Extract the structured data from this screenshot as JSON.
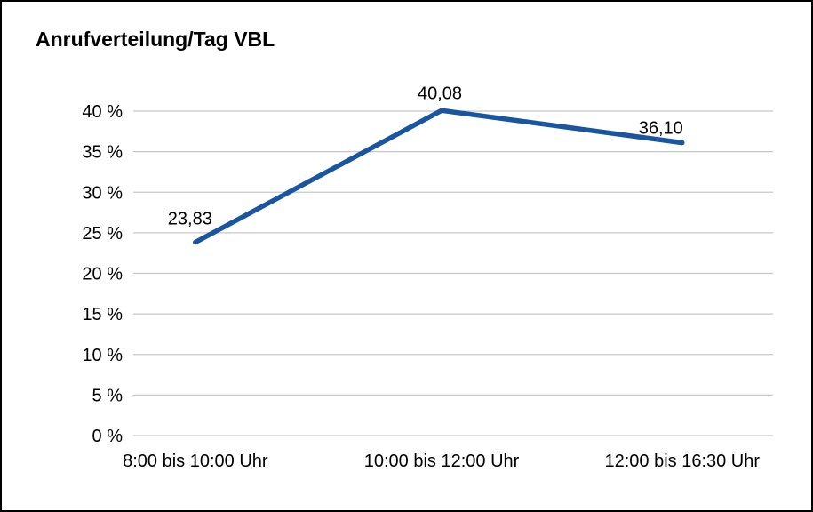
{
  "title": "Anrufverteilung/Tag VBL",
  "colors": {
    "line": "#1a56a0",
    "grid": "#c8c8c8",
    "border": "#000000",
    "background": "#ffffff",
    "text": "#000000"
  },
  "chart_data": {
    "type": "line",
    "title": "Anrufverteilung/Tag VBL",
    "categories": [
      "8:00 bis 10:00 Uhr",
      "10:00 bis 12:00 Uhr",
      "12:00 bis 16:30 Uhr"
    ],
    "values": [
      23.83,
      40.08,
      36.1
    ],
    "point_labels": [
      "23,83",
      "40,08",
      "36,10"
    ],
    "ylim": [
      0,
      40
    ],
    "yticks": [
      {
        "value": 0,
        "label": "0 %"
      },
      {
        "value": 5,
        "label": "5 %"
      },
      {
        "value": 10,
        "label": "10 %"
      },
      {
        "value": 15,
        "label": "15 %"
      },
      {
        "value": 20,
        "label": "20 %"
      },
      {
        "value": 25,
        "label": "25 %"
      },
      {
        "value": 30,
        "label": "30 %"
      },
      {
        "value": 35,
        "label": "35 %"
      },
      {
        "value": 40,
        "label": "40 %"
      }
    ],
    "grid": "horizontal",
    "legend": "none",
    "xlabel": "",
    "ylabel": ""
  }
}
